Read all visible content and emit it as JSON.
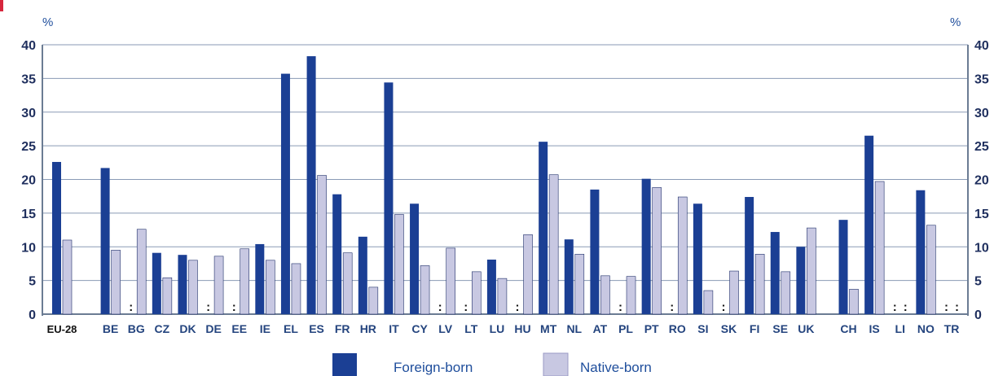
{
  "chart_data": {
    "type": "bar",
    "ylabel_left": "%",
    "ylabel_right": "%",
    "ylim": [
      0,
      40
    ],
    "yticks": [
      "0",
      "5",
      "10",
      "15",
      "20",
      "25",
      "30",
      "35",
      "40"
    ],
    "yticks_right": [
      "0",
      "5",
      "10",
      "15",
      "20",
      "25",
      "30",
      "35",
      "40"
    ],
    "grid": true,
    "legend_position": "bottom",
    "not_available_marker": ":",
    "categories": [
      "EU-28",
      "BE",
      "BG",
      "CZ",
      "DK",
      "DE",
      "EE",
      "IE",
      "EL",
      "ES",
      "FR",
      "HR",
      "IT",
      "CY",
      "LV",
      "LT",
      "LU",
      "HU",
      "MT",
      "NL",
      "AT",
      "PL",
      "PT",
      "RO",
      "SI",
      "SK",
      "FI",
      "SE",
      "UK",
      "CH",
      "IS",
      "LI",
      "NO",
      "TR"
    ],
    "series": [
      {
        "name": "Foreign-born",
        "color": "#1b3f94",
        "values": [
          22.6,
          21.7,
          null,
          9.1,
          8.8,
          null,
          null,
          10.4,
          35.7,
          38.3,
          17.8,
          11.5,
          34.4,
          16.4,
          null,
          null,
          8.1,
          null,
          25.6,
          11.1,
          18.5,
          null,
          20.1,
          null,
          16.4,
          null,
          17.4,
          12.2,
          10.0,
          14.0,
          26.5,
          null,
          18.4,
          null
        ]
      },
      {
        "name": "Native-born",
        "color": "#c8c8e2",
        "values": [
          11.0,
          9.5,
          12.6,
          5.4,
          8.0,
          8.6,
          9.7,
          8.0,
          7.5,
          20.6,
          9.1,
          4.0,
          14.8,
          7.2,
          9.8,
          6.3,
          5.3,
          11.8,
          20.7,
          8.9,
          5.7,
          5.6,
          18.8,
          17.4,
          3.5,
          6.4,
          8.9,
          6.3,
          12.8,
          3.7,
          19.7,
          null,
          13.2,
          null
        ]
      }
    ]
  },
  "colors": {
    "accent": "#d7263d",
    "axis": "#6b7c93",
    "grid": "#8a9ab5"
  }
}
